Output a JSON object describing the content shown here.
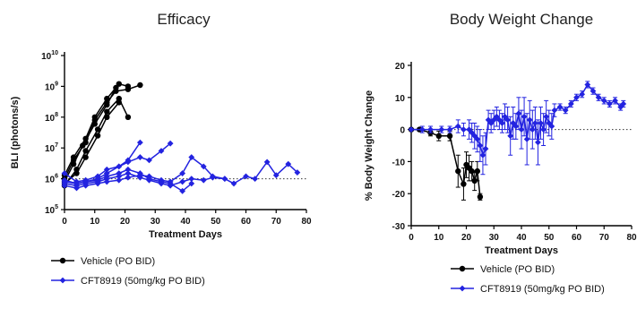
{
  "colors": {
    "vehicle": "#000000",
    "cft8919": "#2323e0",
    "axis": "#000000"
  },
  "chart_data": [
    {
      "type": "line",
      "title": "Efficacy",
      "xlabel": "Treatment Days",
      "ylabel": "BLI (photons/s)",
      "yscale": "log",
      "xlim": [
        0,
        80
      ],
      "ylim": [
        100000,
        10000000000
      ],
      "x_ticks": [
        "0",
        "10",
        "20",
        "30",
        "40",
        "50",
        "60",
        "70",
        "80"
      ],
      "y_ticks": [
        {
          "base": "10",
          "exp": "5"
        },
        {
          "base": "10",
          "exp": "6"
        },
        {
          "base": "10",
          "exp": "7"
        },
        {
          "base": "10",
          "exp": "8"
        },
        {
          "base": "10",
          "exp": "9"
        },
        {
          "base": "10",
          "exp": "10"
        }
      ],
      "reference_line": {
        "y": 1000000,
        "style": "dotted"
      },
      "grid": false,
      "legend": "bottom",
      "series": [
        {
          "name": "Vehicle (PO BID)",
          "group": "vehicle",
          "marker": "circle",
          "x": [
            0,
            3,
            6,
            10,
            14,
            17
          ],
          "y": [
            800000,
            3000000,
            12000000,
            60000000,
            250000000,
            900000000
          ]
        },
        {
          "name": "",
          "group": "vehicle",
          "marker": "circle",
          "x": [
            0,
            3,
            7,
            10,
            14,
            18,
            21
          ],
          "y": [
            1300000,
            5000000,
            20000000,
            100000000,
            400000000,
            1200000000,
            1000000000
          ]
        },
        {
          "name": "",
          "group": "vehicle",
          "marker": "circle",
          "x": [
            0,
            4,
            7,
            11,
            14,
            18,
            21
          ],
          "y": [
            600000,
            2000000,
            8000000,
            40000000,
            150000000,
            400000000,
            100000000
          ]
        },
        {
          "name": "",
          "group": "vehicle",
          "marker": "circle",
          "x": [
            0,
            3,
            7,
            10,
            14,
            17,
            21,
            25
          ],
          "y": [
            1000000,
            4000000,
            15000000,
            80000000,
            300000000,
            700000000,
            800000000,
            1100000000
          ]
        },
        {
          "name": "",
          "group": "vehicle",
          "marker": "circle",
          "x": [
            0,
            4,
            7,
            11,
            14,
            18
          ],
          "y": [
            700000,
            1500000,
            5000000,
            25000000,
            100000000,
            300000000
          ]
        },
        {
          "name": "CFT8919 (50mg/kg PO BID)",
          "group": "cft8919",
          "marker": "diamond",
          "x": [
            0,
            4,
            7,
            11,
            14,
            18,
            21,
            25
          ],
          "y": [
            1500000,
            800000,
            900000,
            1200000,
            2000000,
            2500000,
            4000000,
            15000000
          ]
        },
        {
          "name": "",
          "group": "cft8919",
          "marker": "diamond",
          "x": [
            0,
            4,
            7,
            11,
            14,
            18,
            21,
            25,
            28,
            32,
            35
          ],
          "y": [
            900000,
            700000,
            800000,
            1000000,
            1500000,
            2500000,
            3500000,
            5000000,
            4000000,
            8000000,
            14000000
          ]
        },
        {
          "name": "",
          "group": "cft8919",
          "marker": "diamond",
          "x": [
            0,
            4,
            7,
            11,
            14,
            18,
            21,
            25,
            28,
            32,
            35,
            39,
            42,
            46,
            49,
            53
          ],
          "y": [
            700000,
            600000,
            700000,
            800000,
            1000000,
            1200000,
            1500000,
            1100000,
            900000,
            700000,
            600000,
            800000,
            1000000,
            900000,
            1100000,
            1000000
          ]
        },
        {
          "name": "",
          "group": "cft8919",
          "marker": "diamond",
          "x": [
            0,
            4,
            7,
            11,
            14,
            18,
            21,
            25,
            28,
            32,
            35,
            39,
            42,
            46,
            49,
            53,
            56,
            60,
            63,
            67,
            70,
            74,
            77
          ],
          "y": [
            600000,
            500000,
            600000,
            700000,
            800000,
            900000,
            1100000,
            1300000,
            1200000,
            900000,
            800000,
            1500000,
            5000000,
            2500000,
            1200000,
            1000000,
            700000,
            1200000,
            1000000,
            3500000,
            1300000,
            3000000,
            1600000
          ]
        },
        {
          "name": "",
          "group": "cft8919",
          "marker": "diamond",
          "x": [
            0,
            4,
            7,
            11,
            14,
            18,
            21,
            25,
            28,
            32,
            35,
            39,
            42
          ],
          "y": [
            800000,
            700000,
            800000,
            900000,
            1200000,
            1500000,
            2000000,
            1500000,
            1000000,
            800000,
            700000,
            400000,
            700000
          ]
        }
      ]
    },
    {
      "type": "line",
      "title": "Body Weight Change",
      "xlabel": "Treatment Days",
      "ylabel": "% Body Weight Change",
      "xlim": [
        0,
        80
      ],
      "ylim": [
        -30,
        20
      ],
      "x_ticks": [
        "0",
        "10",
        "20",
        "30",
        "40",
        "50",
        "60",
        "70",
        "80"
      ],
      "y_ticks": [
        "20",
        "10",
        "0",
        "-10",
        "-20",
        "-30"
      ],
      "reference_line": {
        "y": 0,
        "style": "dotted"
      },
      "grid": false,
      "legend": "bottom",
      "series": [
        {
          "name": "Vehicle (PO BID)",
          "group": "vehicle",
          "marker": "circle",
          "x": [
            0,
            3,
            7,
            10,
            14,
            17,
            19,
            20,
            21,
            22,
            23,
            24,
            25
          ],
          "y": [
            0,
            0,
            -1,
            -2,
            -2,
            -13,
            -17,
            -11,
            -12,
            -13,
            -16,
            -13,
            -21
          ],
          "error": [
            0,
            0.5,
            1,
            1.5,
            1.5,
            5,
            5,
            4,
            4,
            3,
            3,
            3,
            1
          ]
        },
        {
          "name": "CFT8919 (50mg/kg PO BID)",
          "group": "cft8919",
          "marker": "diamond",
          "x": [
            0,
            4,
            7,
            11,
            14,
            17,
            19,
            21,
            22,
            23,
            24,
            25,
            26,
            27,
            28,
            29,
            30,
            31,
            32,
            33,
            34,
            35,
            36,
            37,
            38,
            39,
            40,
            41,
            42,
            43,
            44,
            45,
            46,
            47,
            48,
            49,
            50,
            51,
            52,
            54,
            56,
            58,
            60,
            62,
            64,
            66,
            68,
            70,
            72,
            74,
            76,
            77
          ],
          "y": [
            0,
            0,
            0,
            0,
            0,
            1,
            0,
            0,
            -1,
            -2,
            -3,
            -5,
            -8,
            -6,
            3,
            2,
            3,
            4,
            3,
            2,
            4,
            3,
            -2,
            2,
            1,
            5,
            0,
            4,
            -3,
            3,
            0,
            2,
            -4,
            2,
            0,
            4,
            2,
            1,
            6,
            7,
            6,
            8,
            10,
            11,
            14,
            12,
            10,
            9,
            8,
            9,
            7,
            8
          ],
          "error": [
            0,
            1,
            1,
            1,
            1,
            2,
            2,
            3,
            3,
            4,
            4,
            5,
            6,
            5,
            3,
            3,
            3,
            3,
            3,
            3,
            4,
            4,
            6,
            5,
            4,
            5,
            6,
            6,
            8,
            6,
            6,
            5,
            7,
            5,
            5,
            5,
            4,
            4,
            2,
            1,
            1,
            1,
            1,
            1,
            1,
            1,
            1,
            1,
            1,
            1,
            1,
            1
          ]
        }
      ]
    }
  ]
}
